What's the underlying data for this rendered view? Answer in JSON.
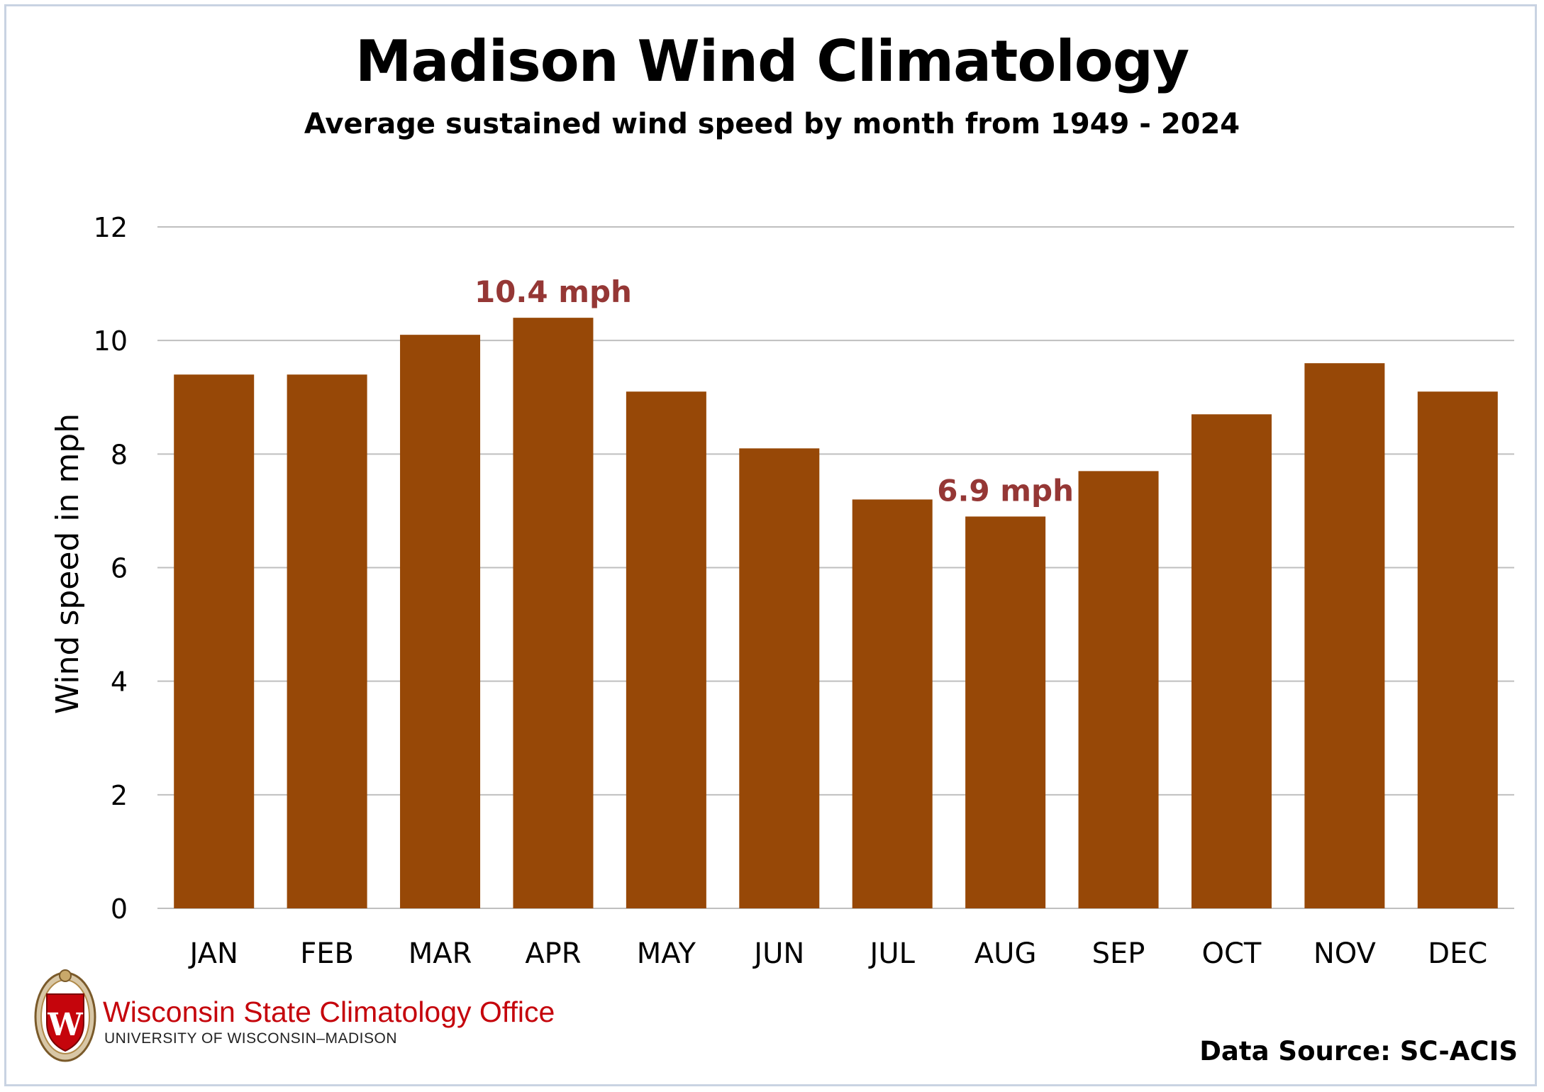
{
  "header": {
    "title": "Madison Wind Climatology",
    "subtitle": "Average sustained wind speed by month from 1949 - 2024"
  },
  "logo": {
    "name": "Wisconsin State Climatology Office",
    "sub": "UNIVERSITY OF WISCONSIN–MADISON",
    "crest_letter": "W"
  },
  "source": "Data Source: SC-ACIS",
  "colors": {
    "bar": "#974807",
    "annotation": "#953735",
    "grid": "#bfbfbf",
    "frame": "#c9d3e2",
    "brand_red": "#c5050c"
  },
  "chart_data": {
    "type": "bar",
    "title": "Madison Wind Climatology",
    "subtitle": "Average sustained wind speed by month from 1949 - 2024",
    "xlabel": "",
    "ylabel": "Wind speed in mph",
    "categories": [
      "JAN",
      "FEB",
      "MAR",
      "APR",
      "MAY",
      "JUN",
      "JUL",
      "AUG",
      "SEP",
      "OCT",
      "NOV",
      "DEC"
    ],
    "values": [
      9.4,
      9.4,
      10.1,
      10.4,
      9.1,
      8.1,
      7.2,
      6.9,
      7.7,
      8.7,
      9.6,
      9.1
    ],
    "ylim": [
      0,
      12
    ],
    "yticks": [
      0,
      2,
      4,
      6,
      8,
      10,
      12
    ],
    "grid": true,
    "legend": "none",
    "annotations": [
      {
        "category": "APR",
        "text": "10.4 mph"
      },
      {
        "category": "AUG",
        "text": "6.9 mph"
      }
    ]
  }
}
